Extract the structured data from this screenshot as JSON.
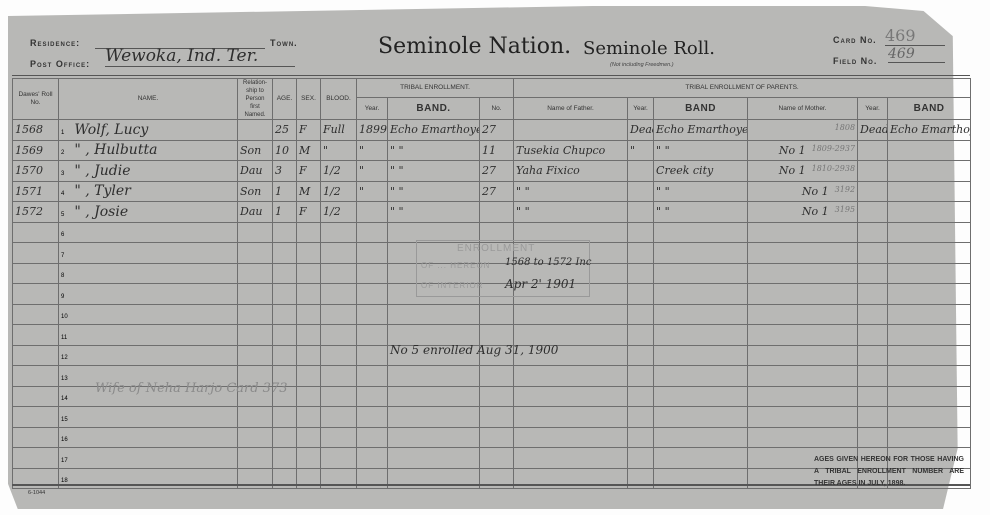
{
  "header": {
    "residence_label": "Residence:",
    "town_label": "Town.",
    "post_office_label": "Post Office:",
    "post_office_value": "Wewoka, Ind. Ter.",
    "title": "Seminole Nation.",
    "subtitle": "Seminole Roll.",
    "subtitle_note": "(Not including Freedmen.)",
    "card_no_label": "Card No.",
    "card_no_value": "469",
    "field_no_label": "Field No.",
    "field_no_value": "469"
  },
  "columns": {
    "dawes": "Dawes' Roll No.",
    "name": "NAME.",
    "relationship": "Relation-ship to Person first Named.",
    "age": "AGE.",
    "sex": "SEX.",
    "blood": "BLOOD.",
    "tribal_enrollment": "TRIBAL ENROLLMENT.",
    "year": "Year.",
    "band": "BAND.",
    "no": "No.",
    "parents": "TRIBAL ENROLLMENT OF PARENTS.",
    "father": "Name of Father.",
    "father_year": "Year.",
    "father_band": "BAND",
    "mother": "Name of Mother.",
    "mother_year": "Year.",
    "mother_band": "BAND"
  },
  "rows": [
    {
      "n": "1",
      "roll": "1568",
      "name": "Wolf, Lucy",
      "rel": "",
      "age": "25",
      "sex": "F",
      "blood": "Full",
      "year": "1899",
      "band": "Echo Emarthoye",
      "no": "27",
      "father": "",
      "fyear": "Dead",
      "fband": "Echo Emarthoye",
      "mother": "",
      "mnote": "1808",
      "myear": "Dead",
      "mband": "Echo Emarthoye"
    },
    {
      "n": "2",
      "roll": "1569",
      "name": "\"  , Hulbutta",
      "rel": "Son",
      "age": "10",
      "sex": "M",
      "blood": "\"",
      "year": "\"",
      "band": "\"    \"",
      "no": "11",
      "father": "Tusekia Chupco",
      "fyear": "\"",
      "fband": "\"    \"",
      "mother": "No 1",
      "mnote": "1809-2937",
      "myear": "",
      "mband": ""
    },
    {
      "n": "3",
      "roll": "1570",
      "name": "\"  , Judie",
      "rel": "Dau",
      "age": "3",
      "sex": "F",
      "blood": "1/2",
      "year": "\"",
      "band": "\"    \"",
      "no": "27",
      "father": "Yaha Fixico",
      "fyear": "",
      "fband": "Creek city",
      "mother": "No 1",
      "mnote": "1810-2938",
      "myear": "",
      "mband": ""
    },
    {
      "n": "4",
      "roll": "1571",
      "name": "\"  , Tyler",
      "rel": "Son",
      "age": "1",
      "sex": "M",
      "blood": "1/2",
      "year": "\"",
      "band": "\"    \"",
      "no": "27",
      "father": "\"    \"",
      "fyear": "",
      "fband": "\"    \"",
      "mother": "No 1",
      "mnote": "3192",
      "myear": "",
      "mband": ""
    },
    {
      "n": "5",
      "roll": "1572",
      "name": "\"  , Josie",
      "rel": "Dau",
      "age": "1",
      "sex": "F",
      "blood": "1/2",
      "year": "",
      "band": "\"    \"",
      "no": "",
      "father": "\"    \"",
      "fyear": "",
      "fband": "\"    \"",
      "mother": "No 1",
      "mnote": "3195",
      "myear": "",
      "mband": ""
    },
    {
      "n": "6"
    },
    {
      "n": "7"
    },
    {
      "n": "8"
    },
    {
      "n": "9"
    },
    {
      "n": "10"
    },
    {
      "n": "11"
    },
    {
      "n": "12"
    },
    {
      "n": "13"
    },
    {
      "n": "14"
    },
    {
      "n": "15"
    },
    {
      "n": "16"
    },
    {
      "n": "17"
    },
    {
      "n": "18"
    }
  ],
  "annotations": {
    "stamp_line1": "ENROLLMENT",
    "stamp_line2": "OF ... HEREON",
    "stamp_line3": "OF INTERIOR",
    "approval_range": "1568 to 1572 Inc",
    "approval_date": "Apr 2' 1901",
    "enrolled_note": "No 5 enrolled Aug 31, 1900",
    "row14_note": "Wife of Neha Harjo Card 373"
  },
  "footer": {
    "form_no": "6-1044",
    "ages_note": "AGES GIVEN HEREON FOR THOSE HAVING A TRIBAL ENROLLMENT NUMBER ARE THEIR AGES IN JULY, 1898."
  }
}
